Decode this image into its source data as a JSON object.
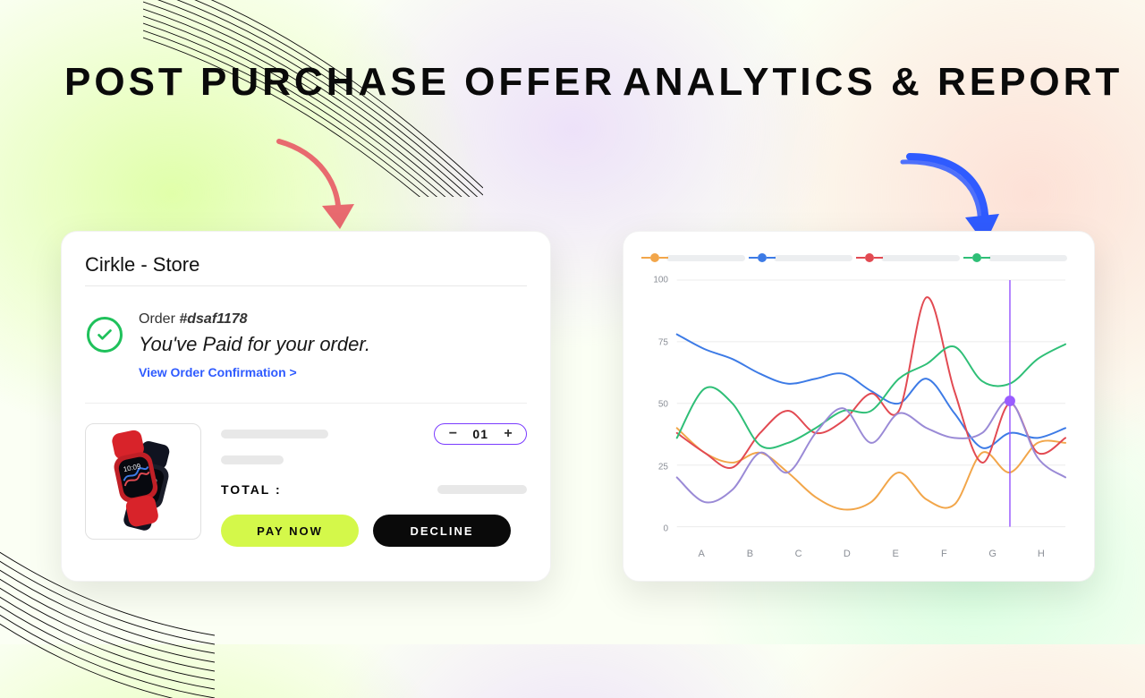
{
  "headings": {
    "left": "POST PURCHASE OFFER",
    "right": "ANALYTICS & REPORT"
  },
  "arrows": {
    "red_color": "#e86a6f",
    "blue_color": "#2f5bff"
  },
  "offer_card": {
    "store_name": "Cirkle - Store",
    "order_prefix": "Order ",
    "order_id": "#dsaf1178",
    "paid_message": "You've Paid for your order.",
    "view_link": "View Order Confirmation  >",
    "quantity": "01",
    "total_label": "TOTAL :",
    "pay_button": "PAY NOW",
    "decline_button": "DECLINE",
    "product": {
      "band_color": "#d8232a",
      "case_color": "#1a1d29",
      "case_color2": "#101320"
    },
    "colors": {
      "check_ring": "#1fc15b",
      "link": "#2f5bff",
      "qty_border": "#7a3bff",
      "pay_bg": "#d4f84a",
      "decline_bg": "#0a0a0a"
    }
  },
  "analytics_card": {
    "chart": {
      "type": "line",
      "x_labels": [
        "A",
        "B",
        "C",
        "D",
        "E",
        "F",
        "G",
        "H"
      ],
      "y_ticks": [
        0,
        25,
        50,
        75,
        100
      ],
      "ylim": [
        0,
        100
      ],
      "grid_color": "#ececec",
      "background_color": "#ffffff",
      "line_width": 2,
      "highlight": {
        "x_index": 6,
        "series": "purple",
        "value": 51,
        "color": "#9a5cff"
      },
      "series": {
        "orange": {
          "color": "#f2a64a",
          "values": [
            40,
            30,
            26,
            30,
            22,
            12,
            7,
            10,
            22,
            11,
            9,
            30,
            22,
            34,
            34
          ]
        },
        "blue": {
          "color": "#3d7be6",
          "values": [
            78,
            72,
            68,
            62,
            58,
            60,
            62,
            55,
            50,
            60,
            46,
            32,
            38,
            36,
            40
          ]
        },
        "red": {
          "color": "#e24a52",
          "values": [
            38,
            30,
            24,
            38,
            47,
            38,
            43,
            54,
            47,
            93,
            55,
            26,
            50,
            30,
            36
          ]
        },
        "green": {
          "color": "#2fbf77",
          "values": [
            36,
            56,
            50,
            33,
            34,
            40,
            47,
            47,
            60,
            66,
            73,
            59,
            58,
            68,
            74
          ]
        },
        "purple": {
          "color": "#9a8ad6",
          "values": [
            20,
            10,
            15,
            30,
            22,
            38,
            48,
            34,
            46,
            40,
            36,
            38,
            51,
            28,
            20
          ]
        }
      }
    }
  }
}
